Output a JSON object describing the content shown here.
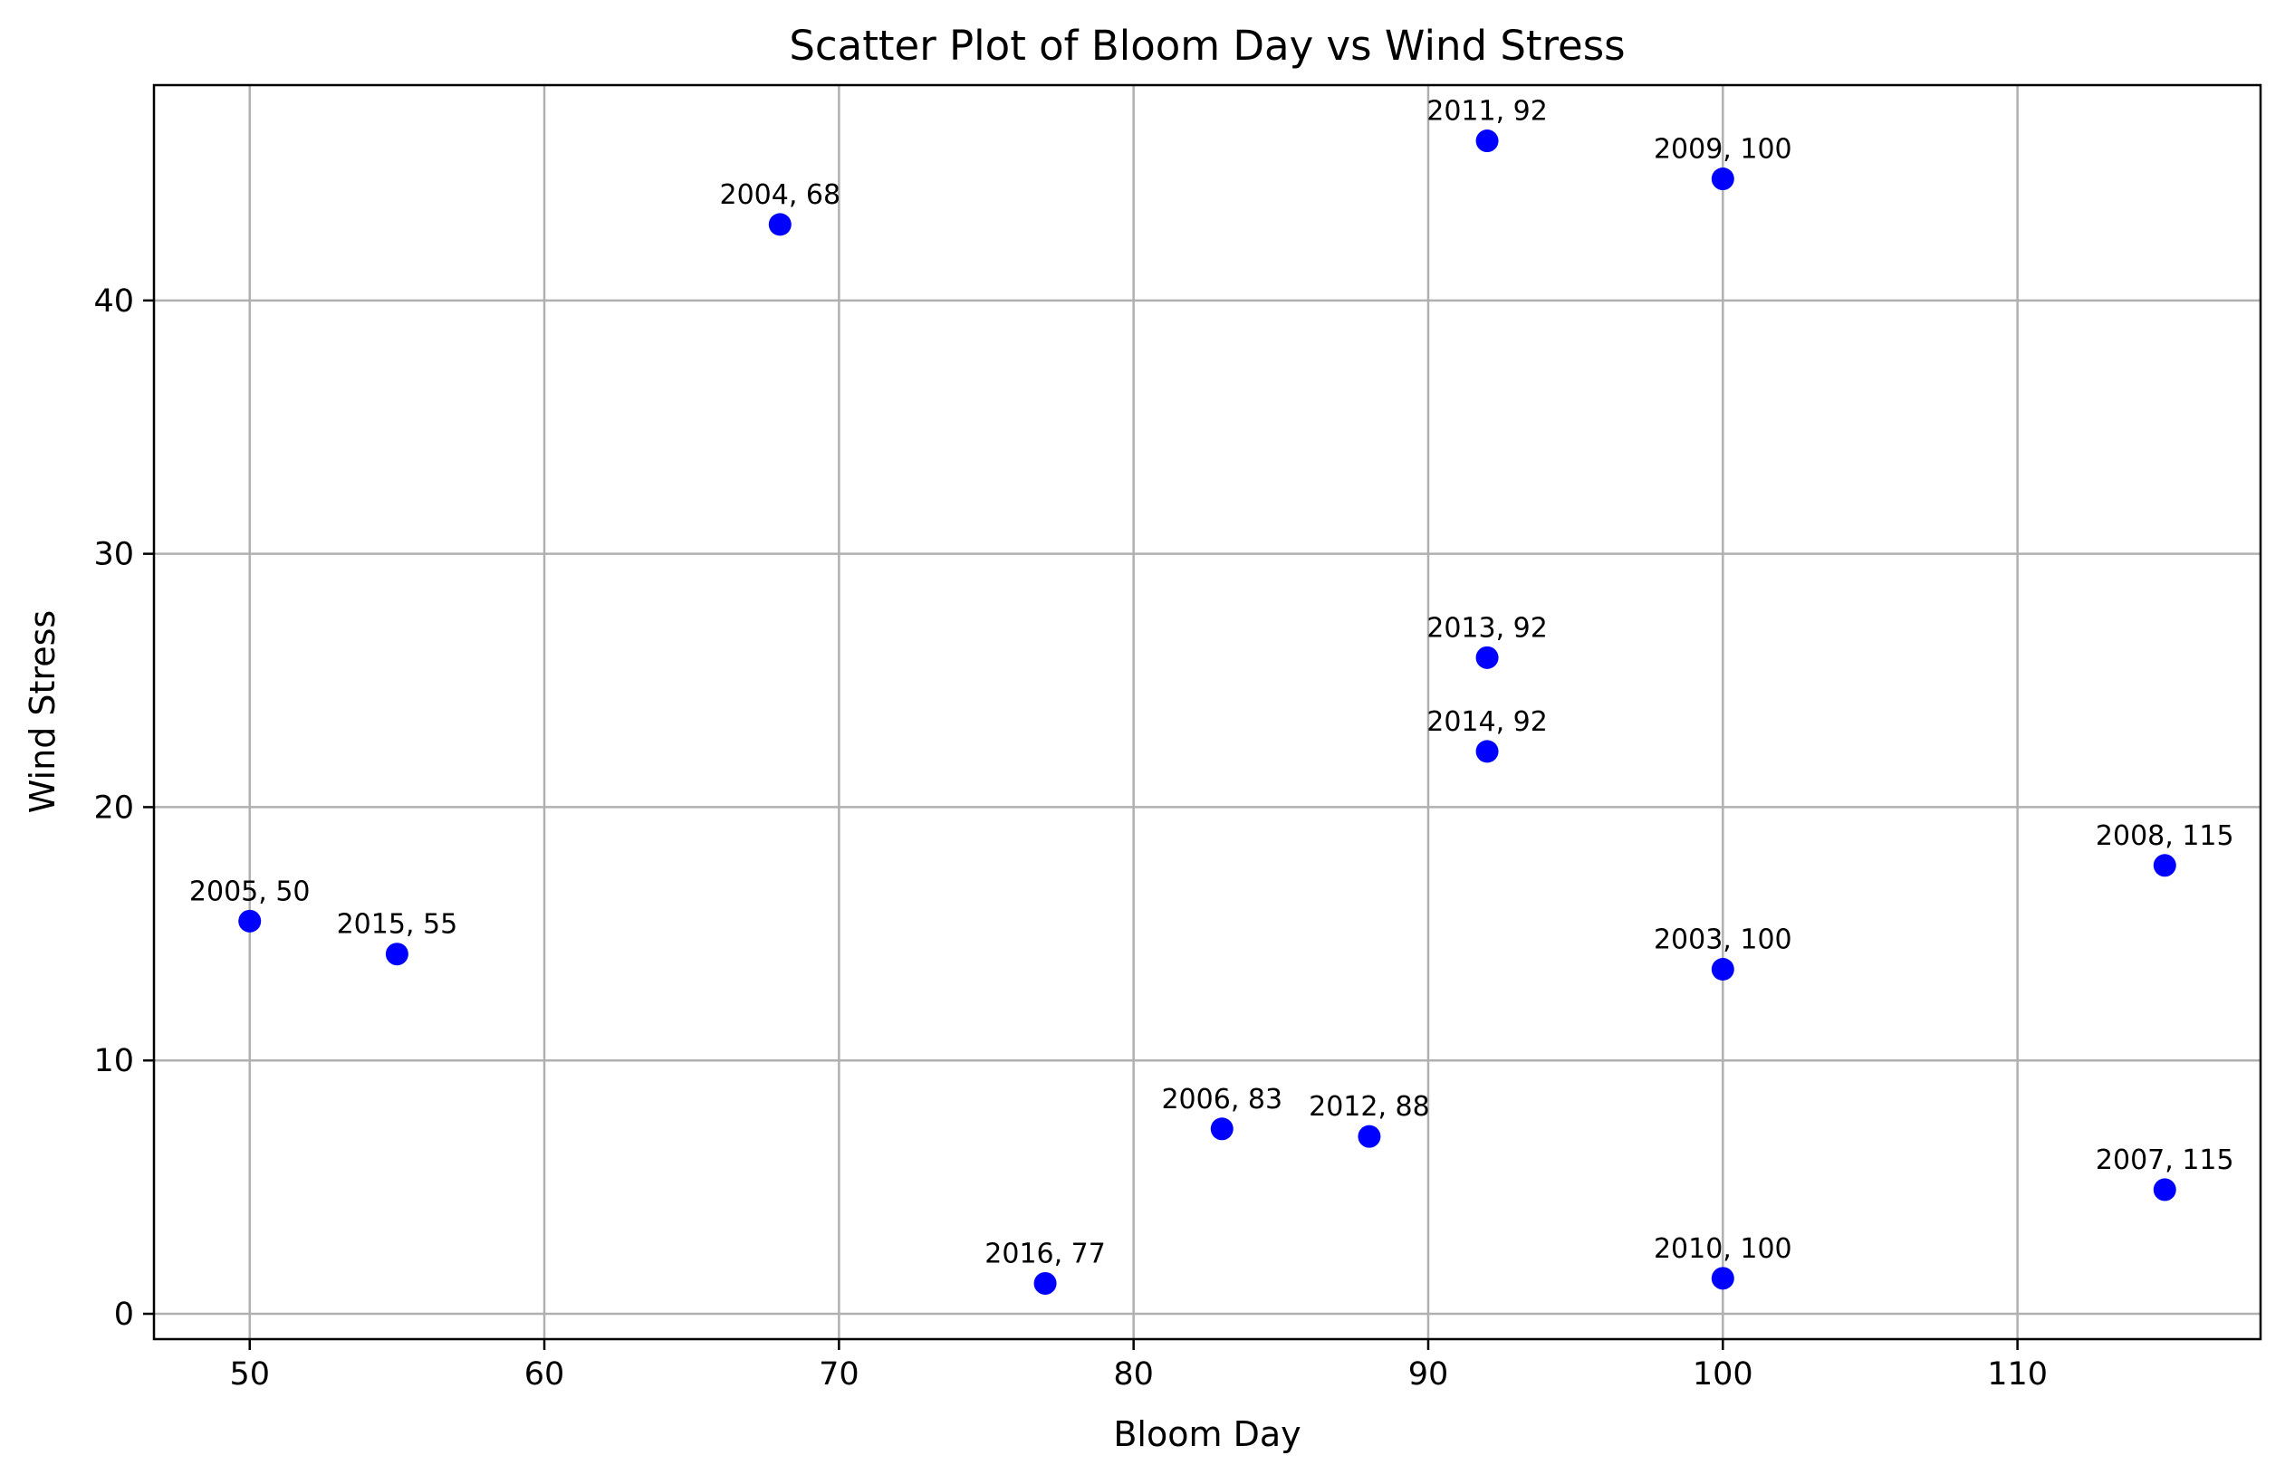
{
  "chart_data": {
    "type": "scatter",
    "title": "Scatter Plot of Bloom Day vs Wind Stress",
    "xlabel": "Bloom Day",
    "ylabel": "Wind Stress",
    "xlim": [
      46.75,
      118.25
    ],
    "ylim": [
      -1.0,
      48.5
    ],
    "xticks": [
      50,
      60,
      70,
      80,
      90,
      100,
      110
    ],
    "yticks": [
      0,
      10,
      20,
      30,
      40
    ],
    "grid": true,
    "marker_color": "#0000ff",
    "points": [
      {
        "x": 100,
        "y": 13.6,
        "label": "2003, 100"
      },
      {
        "x": 68,
        "y": 43.0,
        "label": "2004, 68"
      },
      {
        "x": 50,
        "y": 15.5,
        "label": "2005, 50"
      },
      {
        "x": 83,
        "y": 7.3,
        "label": "2006, 83"
      },
      {
        "x": 115,
        "y": 4.9,
        "label": "2007, 115"
      },
      {
        "x": 115,
        "y": 17.7,
        "label": "2008, 115"
      },
      {
        "x": 100,
        "y": 44.8,
        "label": "2009, 100"
      },
      {
        "x": 100,
        "y": 1.4,
        "label": "2010, 100"
      },
      {
        "x": 92,
        "y": 46.3,
        "label": "2011, 92"
      },
      {
        "x": 88,
        "y": 7.0,
        "label": "2012, 88"
      },
      {
        "x": 92,
        "y": 25.9,
        "label": "2013, 92"
      },
      {
        "x": 92,
        "y": 22.2,
        "label": "2014, 92"
      },
      {
        "x": 55,
        "y": 14.2,
        "label": "2015, 55"
      },
      {
        "x": 77,
        "y": 1.2,
        "label": "2016, 77"
      }
    ]
  }
}
